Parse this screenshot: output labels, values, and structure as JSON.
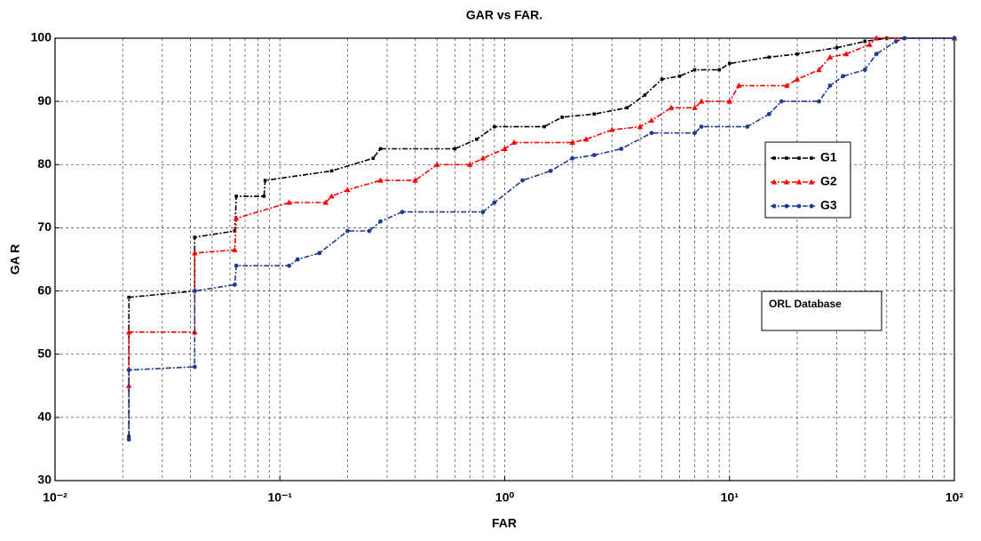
{
  "chart_data": {
    "type": "line",
    "title": "GAR vs FAR.",
    "xlabel": "FAR",
    "ylabel": "GA R",
    "xscale": "log",
    "grid": true,
    "minor_grid": true,
    "legend": "right",
    "annotation": "ORL Database",
    "xlim": [
      0.01,
      100
    ],
    "xticks": [
      {
        "value": 0.01,
        "label": "10⁻²"
      },
      {
        "value": 0.1,
        "label": "10⁻¹"
      },
      {
        "value": 1,
        "label": "10⁰"
      },
      {
        "value": 10,
        "label": "10¹"
      },
      {
        "value": 100,
        "label": "10²"
      }
    ],
    "ylim": [
      30,
      100
    ],
    "yticks": [
      30,
      40,
      50,
      60,
      70,
      80,
      90,
      100
    ],
    "series": [
      {
        "name": "G1",
        "color": "#000000",
        "marker": "square",
        "x": [
          0.0213,
          0.0213,
          0.0418,
          0.0418,
          0.063,
          0.064,
          0.085,
          0.086,
          0.17,
          0.26,
          0.28,
          0.6,
          0.75,
          0.9,
          1.5,
          1.8,
          2.5,
          3.5,
          4.2,
          5,
          6,
          7,
          9,
          10,
          15,
          20,
          30,
          40,
          50,
          100
        ],
        "values": [
          37,
          59,
          60,
          68.5,
          69.5,
          75,
          75,
          77.5,
          79,
          81,
          82.5,
          82.5,
          84,
          86,
          86,
          87.5,
          88,
          89,
          91,
          93.5,
          94,
          95,
          95,
          96,
          97,
          97.5,
          98.5,
          99.5,
          100,
          100
        ]
      },
      {
        "name": "G2",
        "color": "#ff0000",
        "marker": "triangle",
        "x": [
          0.0213,
          0.0213,
          0.0418,
          0.0418,
          0.063,
          0.064,
          0.11,
          0.16,
          0.17,
          0.2,
          0.28,
          0.4,
          0.5,
          0.7,
          0.8,
          1,
          1.1,
          2,
          2.3,
          3,
          4,
          4.5,
          5.5,
          7,
          7.5,
          10,
          11,
          18,
          20,
          25,
          28,
          33,
          42,
          45,
          100
        ],
        "values": [
          45,
          53.5,
          53.5,
          66,
          66.5,
          71.5,
          74,
          74,
          75,
          76,
          77.5,
          77.5,
          80,
          80,
          81,
          82.5,
          83.5,
          83.5,
          84,
          85.5,
          86,
          87,
          89,
          89,
          90,
          90,
          92.5,
          92.5,
          93.5,
          95,
          97,
          97.5,
          99,
          100,
          100
        ]
      },
      {
        "name": "G3",
        "color": "#1f3a93",
        "marker": "circle",
        "x": [
          0.0213,
          0.0213,
          0.0418,
          0.0418,
          0.063,
          0.064,
          0.11,
          0.12,
          0.15,
          0.2,
          0.25,
          0.28,
          0.35,
          0.8,
          0.9,
          1.2,
          1.6,
          2,
          2.5,
          3.3,
          4.5,
          7,
          7.5,
          12,
          15,
          17,
          25,
          28,
          32,
          40,
          45,
          55,
          60,
          100
        ],
        "values": [
          36.5,
          47.5,
          48,
          60,
          61,
          64,
          64,
          65,
          66,
          69.5,
          69.5,
          71,
          72.5,
          72.5,
          74,
          77.5,
          79,
          81,
          81.5,
          82.5,
          85,
          85,
          86,
          86,
          88,
          90,
          90,
          92.5,
          94,
          95,
          97.5,
          99.5,
          100,
          100
        ]
      }
    ]
  }
}
